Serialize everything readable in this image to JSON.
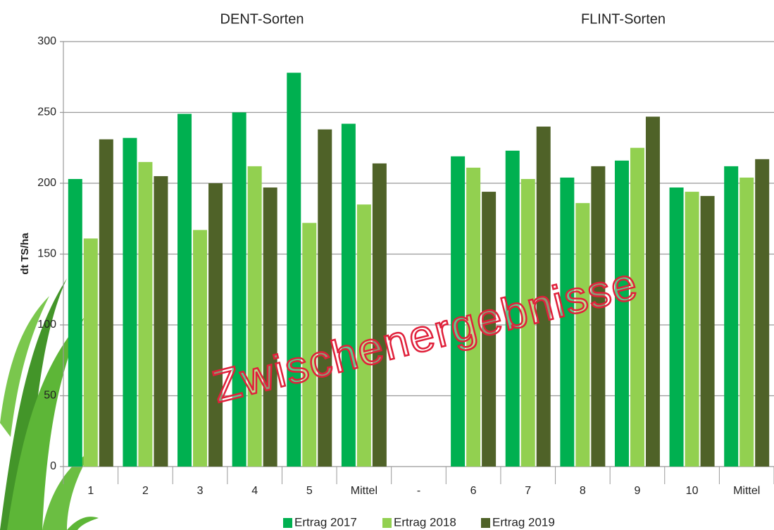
{
  "chart_data": {
    "type": "bar",
    "ylabel": "dt TS/ha",
    "annotations": [
      "DENT-Sorten",
      "FLINT-Sorten",
      "Zwischenergebnisse"
    ],
    "categories": [
      "1",
      "2",
      "3",
      "4",
      "5",
      "Mittel",
      "-",
      "6",
      "7",
      "8",
      "9",
      "10",
      "Mittel"
    ],
    "series": [
      {
        "name": "Ertrag 2017",
        "color": "#00b050",
        "values": [
          203,
          232,
          249,
          250,
          278,
          242,
          null,
          219,
          223,
          204,
          216,
          197,
          212
        ]
      },
      {
        "name": "Ertrag 2018",
        "color": "#92d050",
        "values": [
          161,
          215,
          167,
          212,
          172,
          185,
          null,
          211,
          203,
          186,
          225,
          194,
          204
        ]
      },
      {
        "name": "Ertrag 2019",
        "color": "#4f6228",
        "values": [
          231,
          205,
          200,
          197,
          238,
          214,
          null,
          194,
          240,
          212,
          247,
          191,
          217
        ]
      }
    ],
    "ylim": [
      0,
      300
    ],
    "yticks": [
      0,
      50,
      100,
      150,
      200,
      250,
      300
    ],
    "grid": true,
    "legend": "bottom"
  }
}
